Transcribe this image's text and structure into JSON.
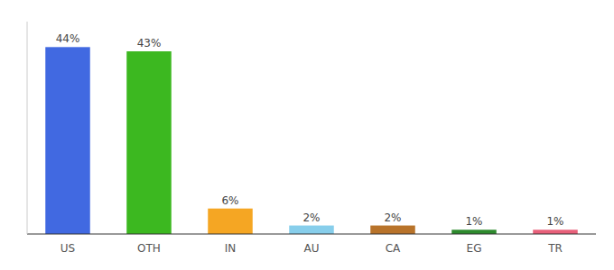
{
  "chart_data": {
    "type": "bar",
    "categories": [
      "US",
      "OTH",
      "IN",
      "AU",
      "CA",
      "EG",
      "TR"
    ],
    "values": [
      44,
      43,
      6,
      2,
      2,
      1,
      1
    ],
    "value_labels": [
      "44%",
      "43%",
      "6%",
      "2%",
      "2%",
      "1%",
      "1%"
    ],
    "colors": [
      "#4169e1",
      "#3cb820",
      "#f5a623",
      "#87ceeb",
      "#b8732a",
      "#2d8a2d",
      "#e8607a"
    ],
    "ylim": [
      0,
      50
    ],
    "data_labels": true,
    "tick_labels": "x"
  }
}
